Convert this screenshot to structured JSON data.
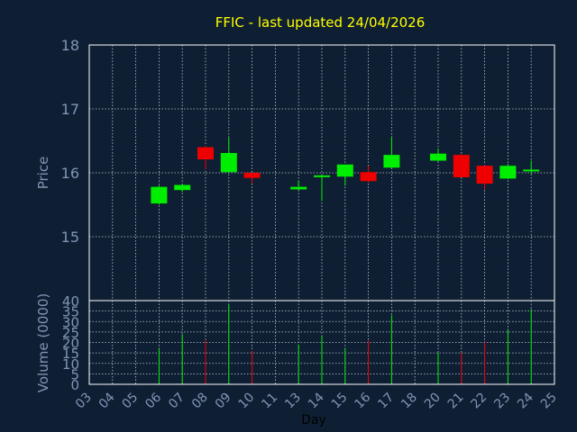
{
  "chart_data": {
    "type": "candlestick",
    "title": "FFIC - last updated 24/04/2026",
    "xlabel": "Day",
    "colors": {
      "background": "#0f1f33",
      "up": "#00ee00",
      "down": "#ee0000",
      "grid": "#b8c4d4",
      "axis": "#7f95b5",
      "title": "#ffff00"
    },
    "x_ticks": [
      "03",
      "04",
      "05",
      "06",
      "07",
      "08",
      "09",
      "10",
      "11",
      "13",
      "14",
      "15",
      "16",
      "17",
      "18",
      "20",
      "21",
      "22",
      "23",
      "24",
      "25"
    ],
    "price_panel": {
      "ylabel": "Price",
      "ylim": [
        14,
        18
      ],
      "ticks": [
        "15",
        "16",
        "17",
        "18"
      ],
      "grid": true
    },
    "volume_panel": {
      "ylabel": "Volume (0000)",
      "ylim": [
        0,
        40
      ],
      "ticks": [
        "0",
        "5",
        "10",
        "15",
        "20",
        "25",
        "30",
        "35",
        "40"
      ],
      "grid": true
    },
    "candles": [
      {
        "day": "06",
        "open": 15.52,
        "high": 15.8,
        "low": 15.5,
        "close": 15.78,
        "volume": 17
      },
      {
        "day": "07",
        "open": 15.73,
        "high": 15.82,
        "low": 15.7,
        "close": 15.81,
        "volume": 24
      },
      {
        "day": "08",
        "open": 16.4,
        "high": 16.42,
        "low": 16.06,
        "close": 16.21,
        "volume": 21
      },
      {
        "day": "09",
        "open": 16.01,
        "high": 16.55,
        "low": 16.0,
        "close": 16.31,
        "volume": 38
      },
      {
        "day": "10",
        "open": 16.0,
        "high": 16.01,
        "low": 15.83,
        "close": 15.92,
        "volume": 16
      },
      {
        "day": "13",
        "open": 15.74,
        "high": 15.88,
        "low": 15.73,
        "close": 15.78,
        "volume": 19
      },
      {
        "day": "14",
        "open": 15.94,
        "high": 15.96,
        "low": 15.56,
        "close": 15.96,
        "volume": 23
      },
      {
        "day": "15",
        "open": 15.94,
        "high": 16.13,
        "low": 15.8,
        "close": 16.13,
        "volume": 17
      },
      {
        "day": "16",
        "open": 16.01,
        "high": 16.11,
        "low": 15.85,
        "close": 15.87,
        "volume": 21
      },
      {
        "day": "17",
        "open": 16.08,
        "high": 16.56,
        "low": 16.07,
        "close": 16.28,
        "volume": 33
      },
      {
        "day": "20",
        "open": 16.19,
        "high": 16.38,
        "low": 16.18,
        "close": 16.3,
        "volume": 15
      },
      {
        "day": "21",
        "open": 16.28,
        "high": 16.3,
        "low": 15.93,
        "close": 15.93,
        "volume": 15
      },
      {
        "day": "22",
        "open": 16.11,
        "high": 16.12,
        "low": 15.74,
        "close": 15.83,
        "volume": 20
      },
      {
        "day": "23",
        "open": 15.91,
        "high": 16.14,
        "low": 15.9,
        "close": 16.11,
        "volume": 26
      },
      {
        "day": "24",
        "open": 16.03,
        "high": 16.19,
        "low": 15.98,
        "close": 16.05,
        "volume": 36
      }
    ]
  }
}
